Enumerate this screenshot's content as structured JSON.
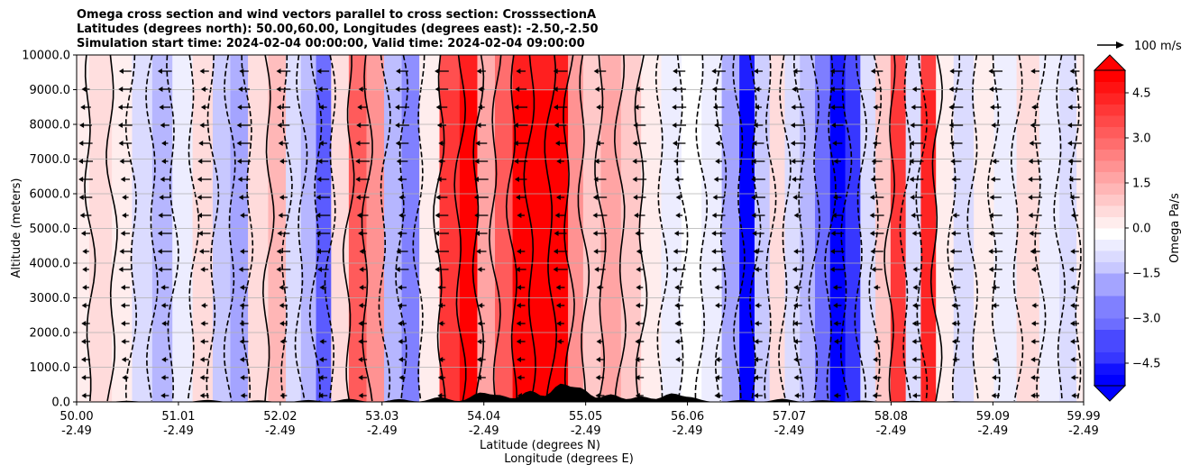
{
  "title_lines": [
    "Omega cross section and wind vectors parallel to cross section: CrosssectionA",
    "Latitudes (degrees north): 50.00,60.00, Longitudes (degrees east): -2.50,-2.50",
    "Simulation start time: 2024-02-04 00:00:00, Valid time: 2024-02-04 09:00:00"
  ],
  "chart_data": {
    "type": "heatmap",
    "y_label": "Altitude (meters)",
    "x_label_1": "Latitude (degrees N)",
    "x_label_2": "Longitude (degrees E)",
    "y_ticks": [
      "0.0",
      "1000.0",
      "2000.0",
      "3000.0",
      "4000.0",
      "5000.0",
      "6000.0",
      "7000.0",
      "8000.0",
      "9000.0",
      "10000.0"
    ],
    "y_range": [
      0,
      10000
    ],
    "x_range": [
      50.0,
      59.99
    ],
    "x_ticks": [
      {
        "lat": "50.00",
        "lon": "-2.49",
        "v": 50.0
      },
      {
        "lat": "51.01",
        "lon": "-2.49",
        "v": 51.01
      },
      {
        "lat": "52.02",
        "lon": "-2.49",
        "v": 52.02
      },
      {
        "lat": "53.03",
        "lon": "-2.49",
        "v": 53.03
      },
      {
        "lat": "54.04",
        "lon": "-2.49",
        "v": 54.04
      },
      {
        "lat": "55.05",
        "lon": "-2.49",
        "v": 55.05
      },
      {
        "lat": "56.06",
        "lon": "-2.49",
        "v": 56.06
      },
      {
        "lat": "57.07",
        "lon": "-2.49",
        "v": 57.07
      },
      {
        "lat": "58.08",
        "lon": "-2.49",
        "v": 58.08
      },
      {
        "lat": "59.09",
        "lon": "-2.49",
        "v": 59.09
      },
      {
        "lat": "59.99",
        "lon": "-2.49",
        "v": 59.99
      }
    ],
    "grid": true,
    "colorbar": {
      "label": "Omega Pa/s",
      "range": [
        -5.25,
        5.25
      ],
      "ticks": [
        "4.5",
        "3.0",
        "1.5",
        "0.0",
        "−1.5",
        "−3.0",
        "−4.5"
      ],
      "tick_values": [
        4.5,
        3.0,
        1.5,
        0.0,
        -1.5,
        -3.0,
        -4.5
      ],
      "low_color": "#0000ff",
      "high_color": "#ff0000"
    },
    "vector_key": "100 m/s",
    "omega_bands": [
      {
        "lat": 50.0,
        "value": 0.3
      },
      {
        "lat": 50.25,
        "value": 0.6
      },
      {
        "lat": 50.45,
        "value": 0.2
      },
      {
        "lat": 50.65,
        "value": -0.8
      },
      {
        "lat": 50.85,
        "value": -1.4
      },
      {
        "lat": 51.05,
        "value": -0.5
      },
      {
        "lat": 51.25,
        "value": 0.8
      },
      {
        "lat": 51.45,
        "value": -1.0
      },
      {
        "lat": 51.6,
        "value": -1.8
      },
      {
        "lat": 51.8,
        "value": 0.9
      },
      {
        "lat": 52.0,
        "value": 1.6
      },
      {
        "lat": 52.15,
        "value": -0.6
      },
      {
        "lat": 52.3,
        "value": -1.6
      },
      {
        "lat": 52.45,
        "value": -3.5
      },
      {
        "lat": 52.6,
        "value": 0.7
      },
      {
        "lat": 52.8,
        "value": 3.2
      },
      {
        "lat": 52.95,
        "value": 2.4
      },
      {
        "lat": 53.15,
        "value": -1.4
      },
      {
        "lat": 53.3,
        "value": -2.8
      },
      {
        "lat": 53.5,
        "value": 0.5
      },
      {
        "lat": 53.7,
        "value": 4.2
      },
      {
        "lat": 53.9,
        "value": 5.2
      },
      {
        "lat": 54.05,
        "value": 2.0
      },
      {
        "lat": 54.25,
        "value": 3.5
      },
      {
        "lat": 54.4,
        "value": 5.4
      },
      {
        "lat": 54.6,
        "value": 5.6
      },
      {
        "lat": 54.8,
        "value": 5.5
      },
      {
        "lat": 54.95,
        "value": 2.2
      },
      {
        "lat": 55.1,
        "value": 1.3
      },
      {
        "lat": 55.3,
        "value": 1.8
      },
      {
        "lat": 55.5,
        "value": 1.0
      },
      {
        "lat": 55.7,
        "value": 0.4
      },
      {
        "lat": 55.9,
        "value": -0.2
      },
      {
        "lat": 56.1,
        "value": 0.1
      },
      {
        "lat": 56.3,
        "value": -0.5
      },
      {
        "lat": 56.5,
        "value": -1.8
      },
      {
        "lat": 56.65,
        "value": -5.2
      },
      {
        "lat": 56.8,
        "value": -1.2
      },
      {
        "lat": 56.95,
        "value": 0.6
      },
      {
        "lat": 57.1,
        "value": -0.8
      },
      {
        "lat": 57.25,
        "value": -1.6
      },
      {
        "lat": 57.4,
        "value": -3.0
      },
      {
        "lat": 57.55,
        "value": -5.4
      },
      {
        "lat": 57.7,
        "value": -4.0
      },
      {
        "lat": 57.85,
        "value": -0.6
      },
      {
        "lat": 58.0,
        "value": 1.2
      },
      {
        "lat": 58.15,
        "value": 4.0
      },
      {
        "lat": 58.3,
        "value": -0.8
      },
      {
        "lat": 58.45,
        "value": 4.6
      },
      {
        "lat": 58.6,
        "value": 0.4
      },
      {
        "lat": 58.8,
        "value": -0.6
      },
      {
        "lat": 59.0,
        "value": 0.3
      },
      {
        "lat": 59.2,
        "value": -0.4
      },
      {
        "lat": 59.45,
        "value": 0.6
      },
      {
        "lat": 59.65,
        "value": -0.3
      },
      {
        "lat": 59.85,
        "value": -0.7
      },
      {
        "lat": 59.99,
        "value": 0.2
      }
    ]
  }
}
